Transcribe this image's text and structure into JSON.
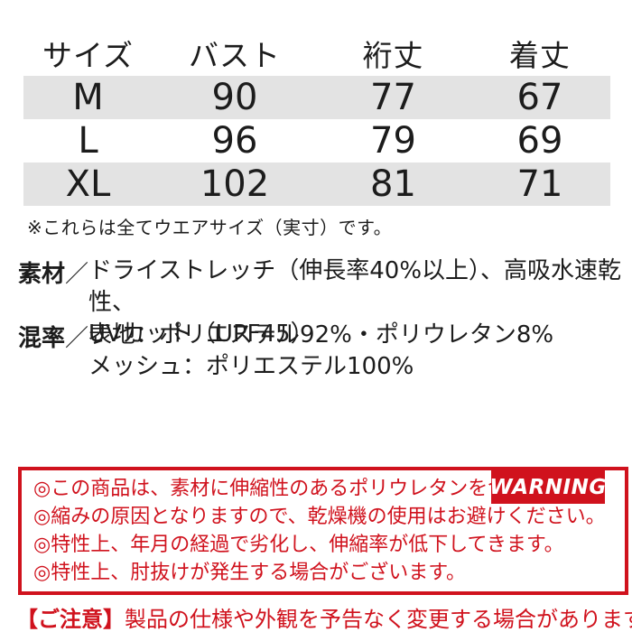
{
  "colors": {
    "accent_red": "#d0121d",
    "row_gray": "#e3e3e3",
    "text_black": "#1c1c1c"
  },
  "size_table": {
    "headers": [
      "サイズ",
      "バスト",
      "裄丈",
      "着丈"
    ],
    "rows": [
      [
        "M",
        "90",
        "77",
        "67"
      ],
      [
        "L",
        "96",
        "79",
        "69"
      ],
      [
        "XL",
        "102",
        "81",
        "71"
      ]
    ]
  },
  "measure_note": "※これらは全てウエアサイズ（実寸）です。",
  "material": {
    "label": "素材",
    "separator": "／",
    "lines": [
      "ドライストレッチ（伸長率40%以上）、高吸水速乾性、",
      "UVカット（UPF45）"
    ]
  },
  "blend": {
    "label": "混率",
    "separator": "／",
    "lines": [
      "表地：ポリエステル92%・ポリウレタン8%",
      "メッシュ：ポリエステル100%"
    ]
  },
  "warning": {
    "badge": "WARNING",
    "items": [
      "◎この商品は、素材に伸縮性のあるポリウレタンを含みます。",
      "◎縮みの原因となりますので、乾燥機の使用はお避けください。",
      "◎特性上、年月の経過で劣化し、伸縮率が低下してきます。",
      "◎特性上、肘抜けが発生する場合がございます。"
    ]
  },
  "footer_note": {
    "prefix": "【ご注意】",
    "text": "製品の仕様や外観を予告なく変更する場合があります。"
  }
}
